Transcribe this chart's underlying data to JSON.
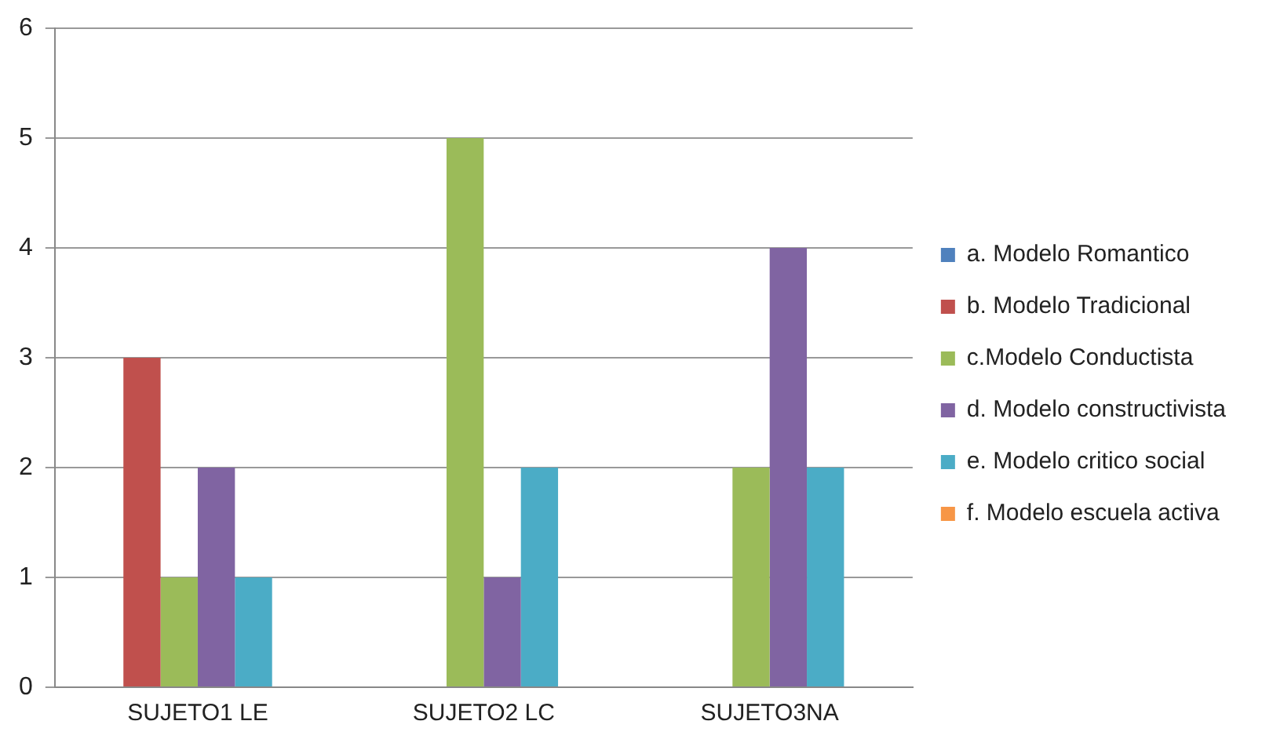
{
  "chart_data": {
    "type": "bar",
    "categories": [
      "SUJETO1 LE",
      "SUJETO2 LC",
      "SUJETO3NA"
    ],
    "series": [
      {
        "name": "a. Modelo Romantico",
        "color": "#4f81bd",
        "values": [
          0,
          0,
          0
        ]
      },
      {
        "name": "b. Modelo Tradicional",
        "color": "#c0504d",
        "values": [
          3,
          0,
          0
        ]
      },
      {
        "name": "c.Modelo Conductista",
        "color": "#9bbb59",
        "values": [
          1,
          5,
          2
        ]
      },
      {
        "name": "d. Modelo constructivista",
        "color": "#8064a2",
        "values": [
          2,
          1,
          4
        ]
      },
      {
        "name": "e. Modelo critico social",
        "color": "#4bacc6",
        "values": [
          1,
          2,
          2
        ]
      },
      {
        "name": "f. Modelo escuela activa",
        "color": "#f79646",
        "values": [
          0,
          0,
          0
        ]
      }
    ],
    "ylim": [
      0,
      6
    ],
    "yticks": [
      0,
      1,
      2,
      3,
      4,
      5,
      6
    ],
    "grid": "y",
    "legend": "right"
  }
}
